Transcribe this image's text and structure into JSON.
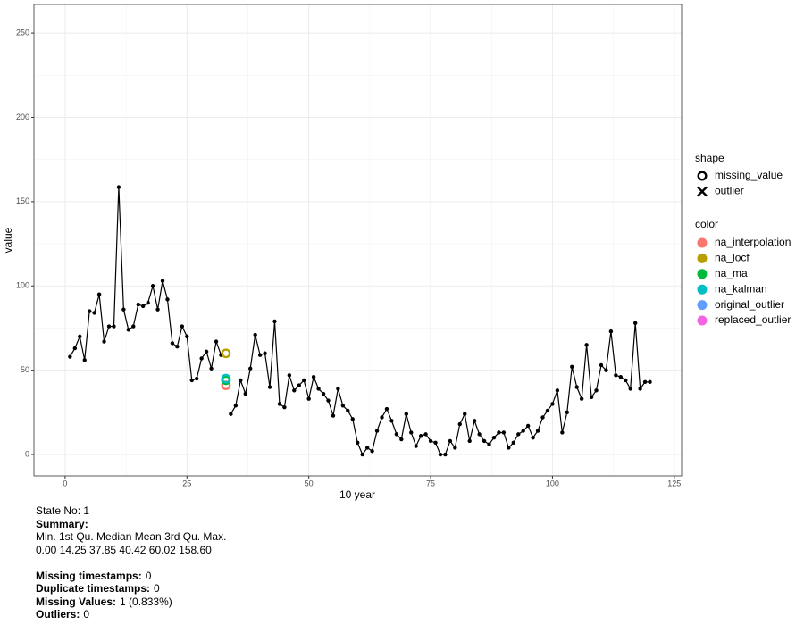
{
  "chart_data": {
    "type": "line",
    "x_label": "10 year",
    "y_label": "value",
    "x": [
      1,
      2,
      3,
      4,
      5,
      6,
      7,
      8,
      9,
      10,
      11,
      12,
      13,
      14,
      15,
      16,
      17,
      18,
      19,
      20,
      21,
      22,
      23,
      24,
      25,
      26,
      27,
      28,
      29,
      30,
      31,
      32,
      33,
      34,
      35,
      36,
      37,
      38,
      39,
      40,
      41,
      42,
      43,
      44,
      45,
      46,
      47,
      48,
      49,
      50,
      51,
      52,
      53,
      54,
      55,
      56,
      57,
      58,
      59,
      60,
      61,
      62,
      63,
      64,
      65,
      66,
      67,
      68,
      69,
      70,
      71,
      72,
      73,
      74,
      75,
      76,
      77,
      78,
      79,
      80,
      81,
      82,
      83,
      84,
      85,
      86,
      87,
      88,
      89,
      90,
      91,
      92,
      93,
      94,
      95,
      96,
      97,
      98,
      99,
      100,
      101,
      102,
      103,
      104,
      105,
      106,
      107,
      108,
      109,
      110,
      111,
      112,
      113,
      114,
      115,
      116,
      117,
      118,
      119,
      120
    ],
    "series": [
      {
        "color": "#000000",
        "values": [
          58,
          63,
          70,
          56,
          85,
          84,
          95,
          67,
          76,
          76,
          158.6,
          86,
          74,
          76,
          89,
          88,
          90,
          100,
          86,
          103,
          92,
          66,
          64,
          76,
          70,
          44,
          45,
          57,
          61,
          51,
          67,
          59,
          null,
          24,
          29,
          44,
          36,
          51,
          71,
          59,
          60,
          40,
          79,
          30,
          28,
          47,
          38,
          41,
          44,
          33,
          46,
          39,
          36,
          32,
          23,
          39,
          29,
          26,
          21,
          7,
          0,
          4,
          2,
          14,
          22,
          27,
          20,
          12,
          9,
          24,
          13,
          5,
          11,
          12,
          8,
          7,
          0,
          0,
          8,
          4,
          18,
          24,
          8,
          20,
          12,
          8,
          6,
          10,
          13,
          13,
          4,
          7,
          12,
          14,
          17,
          10,
          14,
          22,
          26,
          30,
          38,
          13,
          25,
          52,
          40,
          33,
          65,
          34,
          38,
          53,
          50,
          73,
          47,
          46,
          44,
          39,
          78,
          39,
          43,
          43
        ]
      }
    ],
    "imputed": {
      "x": 33,
      "values": [
        41,
        60,
        44,
        45
      ]
    },
    "shape_legend": {
      "title": "shape",
      "items": [
        "missing_value",
        "outlier"
      ]
    },
    "color_legend": {
      "title": "color",
      "items": [
        {
          "name": "na_interpolation",
          "color": "#f8766d"
        },
        {
          "name": "na_locf",
          "color": "#b79f00"
        },
        {
          "name": "na_ma",
          "color": "#00ba38"
        },
        {
          "name": "na_kalman",
          "color": "#00bfc4"
        },
        {
          "name": "original_outlier",
          "color": "#619cff"
        },
        {
          "name": "replaced_outlier",
          "color": "#f564e3"
        }
      ]
    },
    "xlim": [
      -6.4,
      126.5
    ],
    "xticks": [
      0,
      25,
      50,
      75,
      100,
      125
    ],
    "ylim": [
      -12.7,
      267
    ],
    "yticks": [
      0,
      50,
      100,
      150,
      200,
      250
    ],
    "grid": true
  },
  "info": {
    "state": "State No: 1",
    "summary_label": "Summary:",
    "summary_header": "Min. 1st Qu. Median Mean 3rd Qu. Max.",
    "summary_values": "0.00 14.25 37.85 40.42 60.02 158.60",
    "stats": [
      {
        "label": "Missing timestamps:",
        "value": "0"
      },
      {
        "label": "Duplicate timestamps:",
        "value": "0"
      },
      {
        "label": "Missing Values:",
        "value": "1 (0.833%)"
      },
      {
        "label": "Outliers:",
        "value": "0"
      }
    ]
  }
}
